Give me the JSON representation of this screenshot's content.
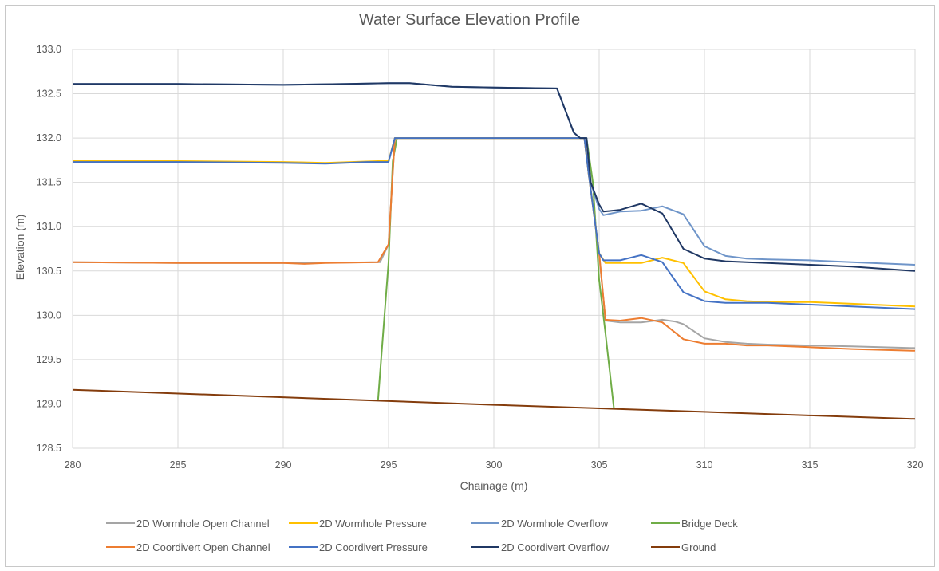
{
  "chart_data": {
    "type": "line",
    "title": "Water Surface Elevation Profile",
    "xlabel": "Chainage (m)",
    "ylabel": "Elevation (m)",
    "xlim": [
      280,
      320
    ],
    "ylim": [
      128.5,
      133.0
    ],
    "xticks": [
      "280",
      "285",
      "290",
      "295",
      "300",
      "305",
      "310",
      "315",
      "320"
    ],
    "yticks": [
      "128.5",
      "129.0",
      "129.5",
      "130.0",
      "130.5",
      "131.0",
      "131.5",
      "132.0",
      "132.5",
      "133.0"
    ],
    "grid": true,
    "legend_position": "bottom",
    "series": [
      {
        "name": "2D Wormhole Open Channel",
        "color": "#a5a5a5",
        "points": [
          [
            280,
            130.6
          ],
          [
            285,
            130.59
          ],
          [
            290,
            130.59
          ],
          [
            294.6,
            130.6
          ],
          [
            295,
            130.8
          ],
          [
            295.3,
            132.0
          ],
          [
            304,
            132.0
          ],
          [
            304.3,
            132.0
          ],
          [
            304.5,
            131.6
          ],
          [
            305,
            130.7
          ],
          [
            305.3,
            129.94
          ],
          [
            306,
            129.92
          ],
          [
            307,
            129.92
          ],
          [
            308,
            129.95
          ],
          [
            308.6,
            129.93
          ],
          [
            309,
            129.9
          ],
          [
            310,
            129.74
          ],
          [
            311,
            129.7
          ],
          [
            312,
            129.68
          ],
          [
            313,
            129.67
          ],
          [
            315,
            129.66
          ],
          [
            317,
            129.65
          ],
          [
            320,
            129.63
          ]
        ]
      },
      {
        "name": "2D Wormhole Pressure",
        "color": "#ffc000",
        "points": [
          [
            280,
            131.74
          ],
          [
            285,
            131.74
          ],
          [
            290,
            131.73
          ],
          [
            292,
            131.72
          ],
          [
            294.5,
            131.74
          ],
          [
            295,
            131.74
          ],
          [
            295.3,
            132.0
          ],
          [
            304,
            132.0
          ],
          [
            304.3,
            132.0
          ],
          [
            304.5,
            131.6
          ],
          [
            305,
            130.7
          ],
          [
            305.3,
            130.59
          ],
          [
            306,
            130.59
          ],
          [
            307,
            130.59
          ],
          [
            308,
            130.65
          ],
          [
            309,
            130.59
          ],
          [
            310,
            130.27
          ],
          [
            311,
            130.18
          ],
          [
            312,
            130.16
          ],
          [
            313,
            130.15
          ],
          [
            315,
            130.15
          ],
          [
            317,
            130.13
          ],
          [
            320,
            130.1
          ]
        ]
      },
      {
        "name": "2D Wormhole Overflow",
        "color": "#6f95c9",
        "points": [
          [
            280,
            132.61
          ],
          [
            285,
            132.61
          ],
          [
            290,
            132.6
          ],
          [
            293,
            132.61
          ],
          [
            295,
            132.62
          ],
          [
            296,
            132.62
          ],
          [
            298,
            132.58
          ],
          [
            300,
            132.57
          ],
          [
            303,
            132.56
          ],
          [
            303.8,
            132.06
          ],
          [
            304.1,
            132.0
          ],
          [
            304.4,
            132.0
          ],
          [
            304.6,
            131.5
          ],
          [
            305,
            131.2
          ],
          [
            305.2,
            131.13
          ],
          [
            306,
            131.17
          ],
          [
            307,
            131.18
          ],
          [
            308,
            131.23
          ],
          [
            309,
            131.14
          ],
          [
            310,
            130.78
          ],
          [
            311,
            130.67
          ],
          [
            312,
            130.64
          ],
          [
            313,
            130.63
          ],
          [
            315,
            130.62
          ],
          [
            317,
            130.6
          ],
          [
            320,
            130.57
          ]
        ]
      },
      {
        "name": "Bridge Deck",
        "color": "#70ad47",
        "points": [
          [
            294.5,
            129.04
          ],
          [
            295,
            130.6
          ],
          [
            295.2,
            131.74
          ],
          [
            295.4,
            132.0
          ],
          [
            304,
            132.0
          ],
          [
            304.4,
            132.0
          ],
          [
            304.7,
            131.5
          ],
          [
            305,
            130.4
          ],
          [
            305.3,
            129.8
          ],
          [
            305.7,
            128.95
          ]
        ]
      },
      {
        "name": "2D Coordivert Open Channel",
        "color": "#ed7d31",
        "points": [
          [
            280,
            130.6
          ],
          [
            285,
            130.59
          ],
          [
            290,
            130.59
          ],
          [
            291,
            130.58
          ],
          [
            292,
            130.59
          ],
          [
            294.5,
            130.6
          ],
          [
            295,
            130.8
          ],
          [
            295.3,
            132.0
          ],
          [
            304,
            132.0
          ],
          [
            304.3,
            132.0
          ],
          [
            304.5,
            131.6
          ],
          [
            305,
            130.7
          ],
          [
            305.3,
            129.95
          ],
          [
            306,
            129.94
          ],
          [
            307,
            129.97
          ],
          [
            308,
            129.92
          ],
          [
            309,
            129.73
          ],
          [
            310,
            129.68
          ],
          [
            311,
            129.68
          ],
          [
            312,
            129.66
          ],
          [
            313,
            129.66
          ],
          [
            315,
            129.64
          ],
          [
            317,
            129.62
          ],
          [
            320,
            129.6
          ]
        ]
      },
      {
        "name": "2D Coordivert Pressure",
        "color": "#4472c4",
        "points": [
          [
            280,
            131.73
          ],
          [
            285,
            131.73
          ],
          [
            290,
            131.72
          ],
          [
            292,
            131.71
          ],
          [
            294,
            131.73
          ],
          [
            295,
            131.73
          ],
          [
            295.3,
            132.0
          ],
          [
            304,
            132.0
          ],
          [
            304.3,
            132.0
          ],
          [
            304.5,
            131.6
          ],
          [
            305,
            130.7
          ],
          [
            305.2,
            130.62
          ],
          [
            306,
            130.62
          ],
          [
            307,
            130.68
          ],
          [
            308,
            130.6
          ],
          [
            309,
            130.26
          ],
          [
            310,
            130.16
          ],
          [
            311,
            130.14
          ],
          [
            312,
            130.14
          ],
          [
            313,
            130.14
          ],
          [
            315,
            130.12
          ],
          [
            317,
            130.1
          ],
          [
            320,
            130.07
          ]
        ]
      },
      {
        "name": "2D Coordivert Overflow",
        "color": "#203864",
        "points": [
          [
            280,
            132.61
          ],
          [
            285,
            132.61
          ],
          [
            290,
            132.6
          ],
          [
            293,
            132.61
          ],
          [
            295,
            132.62
          ],
          [
            296,
            132.62
          ],
          [
            298,
            132.58
          ],
          [
            300,
            132.57
          ],
          [
            303,
            132.56
          ],
          [
            303.8,
            132.06
          ],
          [
            304.1,
            132.0
          ],
          [
            304.4,
            132.0
          ],
          [
            304.6,
            131.5
          ],
          [
            305,
            131.25
          ],
          [
            305.2,
            131.17
          ],
          [
            306,
            131.19
          ],
          [
            307,
            131.26
          ],
          [
            308,
            131.15
          ],
          [
            309,
            130.75
          ],
          [
            310,
            130.64
          ],
          [
            311,
            130.61
          ],
          [
            312,
            130.6
          ],
          [
            313,
            130.59
          ],
          [
            315,
            130.57
          ],
          [
            317,
            130.55
          ],
          [
            320,
            130.5
          ]
        ]
      },
      {
        "name": "Ground",
        "color": "#843c0c",
        "points": [
          [
            280,
            129.16
          ],
          [
            300,
            128.99
          ],
          [
            320,
            128.83
          ]
        ]
      }
    ]
  }
}
